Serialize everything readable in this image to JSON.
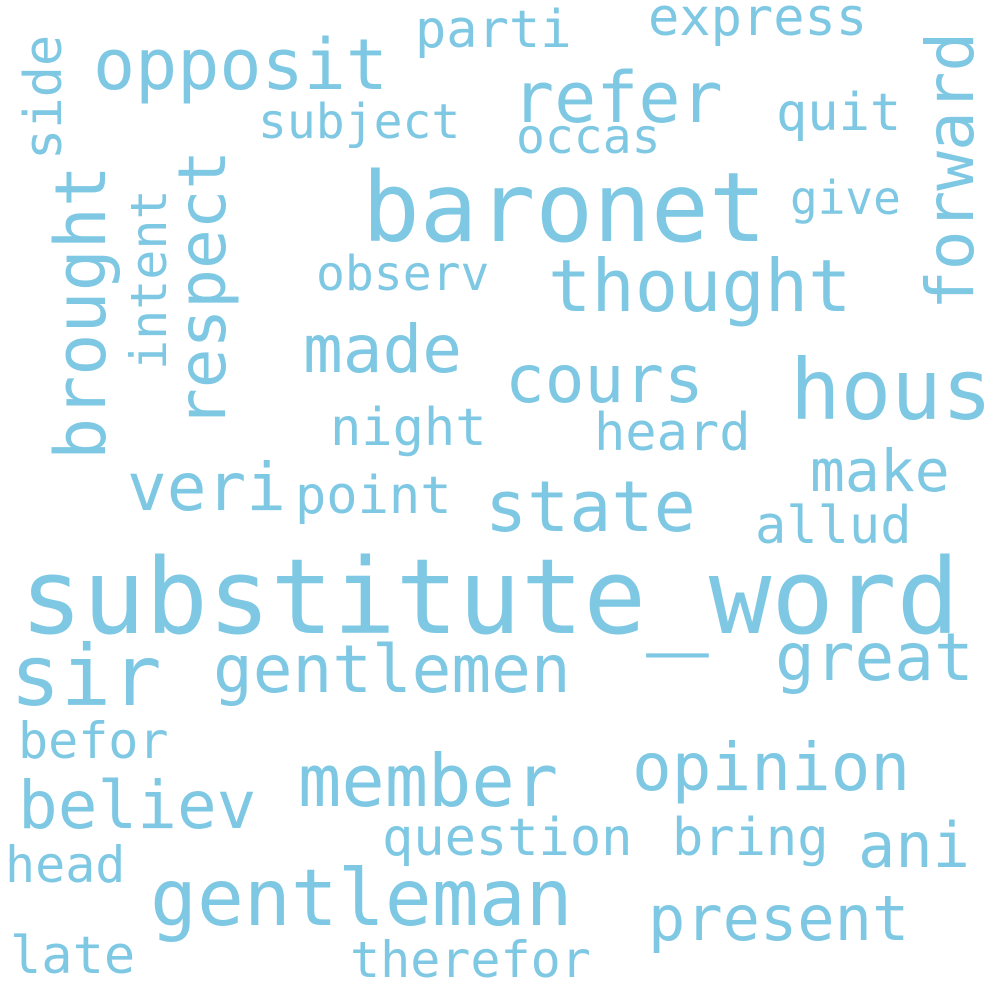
{
  "word_color": "#7ec8e3",
  "background": "#ffffff",
  "words": {
    "substitute_word": "substitute_word",
    "baronet": "baronet",
    "hous": "hous",
    "sir": "sir",
    "gentleman": "gentleman",
    "thought": "thought",
    "member": "member",
    "opinion": "opinion",
    "opposit": "opposit",
    "refer": "refer",
    "made": "made",
    "cours": "cours",
    "state": "state",
    "veri": "veri",
    "gentlemen": "gentlemen",
    "great": "great",
    "believ": "believ",
    "present": "present",
    "ani": "ani",
    "make": "make",
    "heard": "heard",
    "night": "night",
    "point": "point",
    "observ": "observ",
    "subject": "subject",
    "occas": "occas",
    "quit": "quit",
    "give": "give",
    "express": "express",
    "parti": "parti",
    "allud": "allud",
    "question": "question",
    "bring": "bring",
    "befor": "befor",
    "head": "head",
    "late": "late",
    "therefor": "therefor",
    "brought": "brought",
    "respect": "respect",
    "intent": "intent",
    "side": "side",
    "forward": "forward"
  }
}
